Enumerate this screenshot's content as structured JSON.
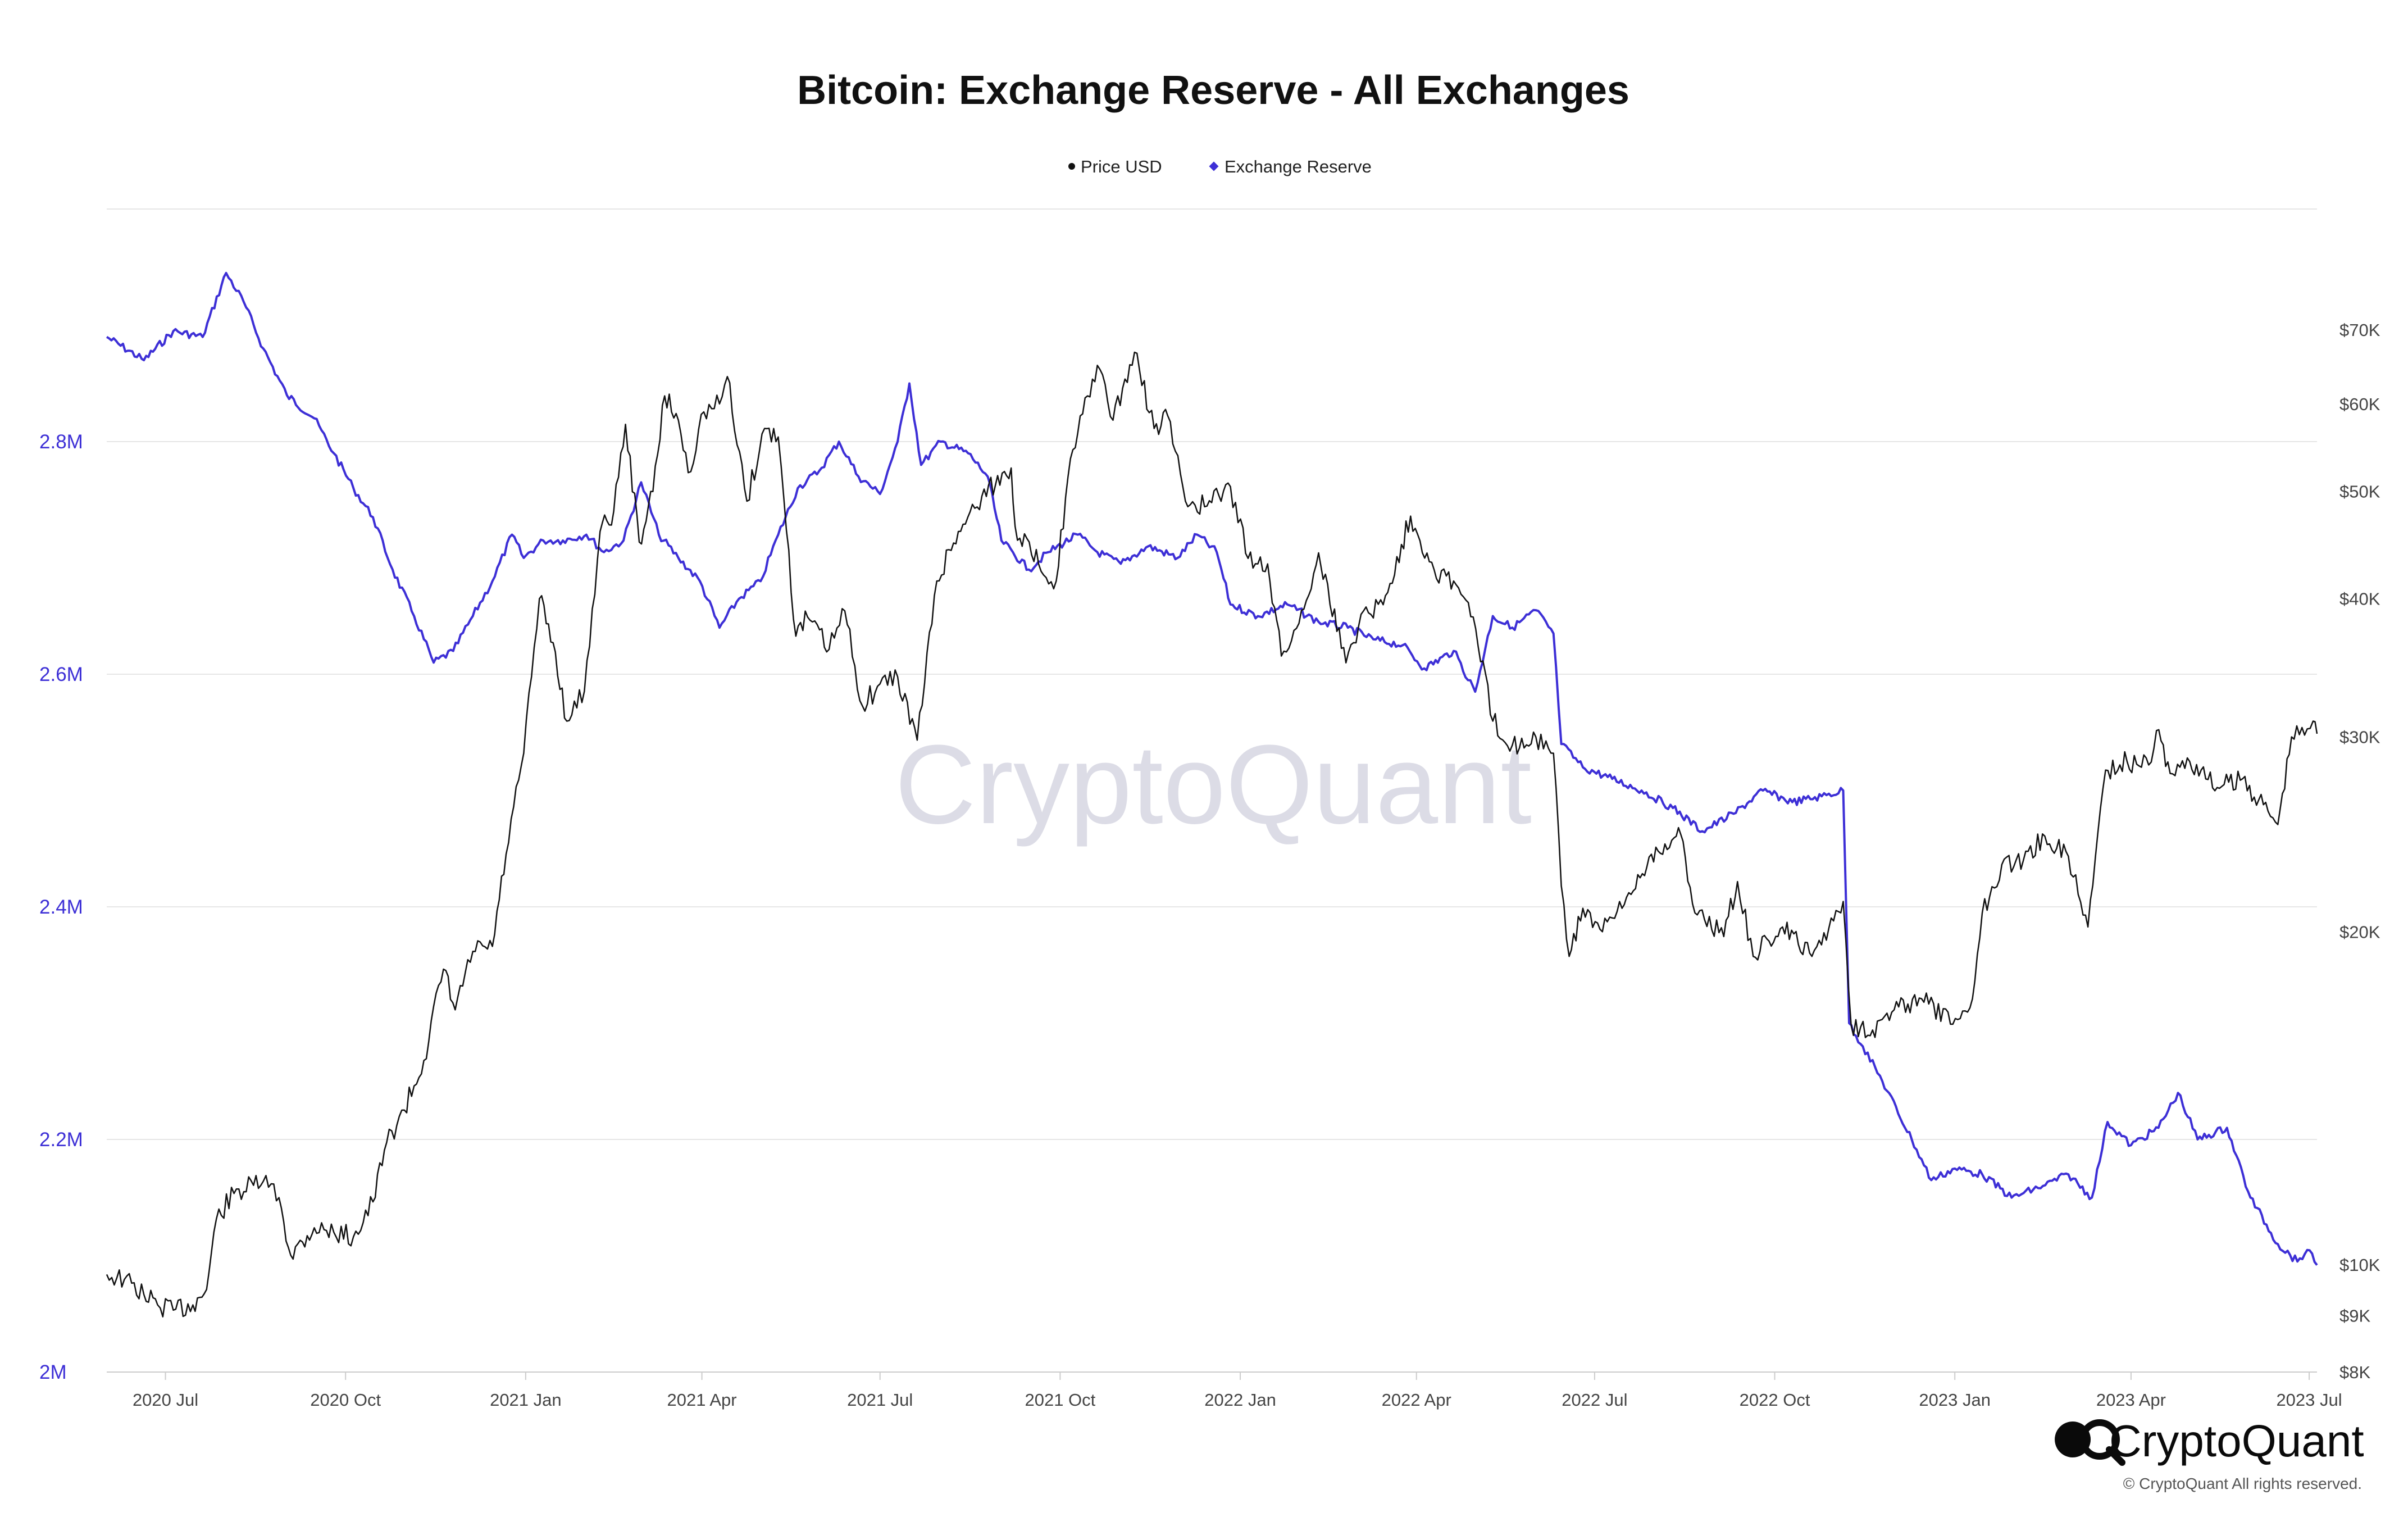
{
  "colors": {
    "price": "#111111",
    "reserve": "#3d2fd6",
    "grid": "#e6e6e6",
    "axis": "#cccccc"
  },
  "watermark": "CryptoQuant",
  "brand": {
    "logo_icon": "cryptoquant-logo-icon",
    "name": "CryptoQuant",
    "copyright": "© CryptoQuant All rights reserved."
  },
  "chart_data": {
    "type": "line",
    "title": "Bitcoin: Exchange Reserve - All Exchanges",
    "legend_position": "top-center",
    "grid": true,
    "x_ticks": [
      "2020 Jul",
      "2020 Oct",
      "2021 Jan",
      "2021 Apr",
      "2021 Jul",
      "2021 Oct",
      "2022 Jan",
      "2022 Apr",
      "2022 Jul",
      "2022 Oct",
      "2023 Jan",
      "2023 Apr",
      "2023 Jul"
    ],
    "x_range": [
      "2020-06-01",
      "2023-07-05"
    ],
    "y_left": {
      "ticks": [
        {
          "value": 2000000,
          "label": "2M"
        },
        {
          "value": 2200000,
          "label": "2.2M"
        },
        {
          "value": 2400000,
          "label": "2.4M"
        },
        {
          "value": 2600000,
          "label": "2.6M"
        },
        {
          "value": 2800000,
          "label": "2.8M"
        }
      ],
      "range": [
        2000000,
        3000000
      ]
    },
    "y_right": {
      "scale": "log",
      "ticks": [
        {
          "value": 8000,
          "label": "$8K"
        },
        {
          "value": 9000,
          "label": "$9K"
        },
        {
          "value": 10000,
          "label": "$10K"
        },
        {
          "value": 20000,
          "label": "$20K"
        },
        {
          "value": 30000,
          "label": "$30K"
        },
        {
          "value": 40000,
          "label": "$40K"
        },
        {
          "value": 50000,
          "label": "$50K"
        },
        {
          "value": 60000,
          "label": "$60K"
        },
        {
          "value": 70000,
          "label": "$70K"
        }
      ],
      "range": [
        8000,
        90000
      ]
    },
    "series": [
      {
        "name": "Price USD",
        "axis": "right",
        "color": "#111111",
        "points": [
          [
            "2020-06-01",
            9800
          ],
          [
            "2020-06-10",
            9700
          ],
          [
            "2020-06-20",
            9400
          ],
          [
            "2020-06-27",
            9200
          ],
          [
            "2020-07-05",
            9100
          ],
          [
            "2020-07-15",
            9200
          ],
          [
            "2020-07-22",
            9500
          ],
          [
            "2020-07-27",
            11000
          ],
          [
            "2020-08-05",
            11600
          ],
          [
            "2020-08-15",
            11800
          ],
          [
            "2020-08-20",
            11900
          ],
          [
            "2020-08-28",
            11500
          ],
          [
            "2020-09-03",
            10200
          ],
          [
            "2020-09-15",
            10800
          ],
          [
            "2020-09-25",
            10700
          ],
          [
            "2020-10-05",
            10600
          ],
          [
            "2020-10-15",
            11400
          ],
          [
            "2020-10-22",
            12900
          ],
          [
            "2020-10-31",
            13800
          ],
          [
            "2020-11-10",
            15300
          ],
          [
            "2020-11-20",
            18500
          ],
          [
            "2020-11-26",
            17000
          ],
          [
            "2020-12-05",
            19200
          ],
          [
            "2020-12-15",
            19400
          ],
          [
            "2020-12-22",
            23500
          ],
          [
            "2020-12-31",
            29000
          ],
          [
            "2021-01-08",
            40000
          ],
          [
            "2021-01-15",
            36500
          ],
          [
            "2021-01-22",
            31000
          ],
          [
            "2021-01-31",
            33000
          ],
          [
            "2021-02-08",
            46000
          ],
          [
            "2021-02-15",
            48000
          ],
          [
            "2021-02-21",
            57500
          ],
          [
            "2021-02-28",
            45000
          ],
          [
            "2021-03-07",
            50000
          ],
          [
            "2021-03-13",
            61000
          ],
          [
            "2021-03-20",
            58000
          ],
          [
            "2021-03-25",
            52000
          ],
          [
            "2021-04-02",
            59000
          ],
          [
            "2021-04-10",
            60000
          ],
          [
            "2021-04-14",
            63500
          ],
          [
            "2021-04-24",
            49000
          ],
          [
            "2021-05-03",
            57000
          ],
          [
            "2021-05-10",
            56000
          ],
          [
            "2021-05-13",
            49000
          ],
          [
            "2021-05-19",
            37000
          ],
          [
            "2021-05-25",
            38500
          ],
          [
            "2021-06-05",
            36000
          ],
          [
            "2021-06-13",
            39000
          ],
          [
            "2021-06-22",
            32000
          ],
          [
            "2021-07-01",
            33500
          ],
          [
            "2021-07-10",
            34000
          ],
          [
            "2021-07-20",
            29800
          ],
          [
            "2021-07-30",
            41500
          ],
          [
            "2021-08-10",
            46000
          ],
          [
            "2021-08-22",
            49500
          ],
          [
            "2021-09-06",
            52500
          ],
          [
            "2021-09-08",
            46500
          ],
          [
            "2021-09-20",
            43000
          ],
          [
            "2021-09-29",
            41500
          ],
          [
            "2021-10-05",
            51500
          ],
          [
            "2021-10-15",
            61000
          ],
          [
            "2021-10-20",
            65000
          ],
          [
            "2021-10-28",
            58000
          ],
          [
            "2021-11-08",
            66800
          ],
          [
            "2021-11-18",
            57000
          ],
          [
            "2021-11-25",
            58500
          ],
          [
            "2021-12-04",
            49000
          ],
          [
            "2021-12-15",
            48500
          ],
          [
            "2021-12-27",
            50500
          ],
          [
            "2022-01-05",
            43500
          ],
          [
            "2022-01-15",
            43000
          ],
          [
            "2022-01-22",
            35500
          ],
          [
            "2022-01-31",
            38000
          ],
          [
            "2022-02-10",
            44000
          ],
          [
            "2022-02-24",
            35000
          ],
          [
            "2022-03-05",
            39000
          ],
          [
            "2022-03-15",
            39500
          ],
          [
            "2022-03-29",
            47500
          ],
          [
            "2022-04-10",
            42500
          ],
          [
            "2022-04-20",
            41500
          ],
          [
            "2022-04-30",
            38500
          ],
          [
            "2022-05-10",
            31000
          ],
          [
            "2022-05-20",
            29500
          ],
          [
            "2022-06-01",
            30000
          ],
          [
            "2022-06-10",
            29000
          ],
          [
            "2022-06-14",
            22000
          ],
          [
            "2022-06-18",
            19000
          ],
          [
            "2022-06-25",
            21000
          ],
          [
            "2022-07-05",
            20000
          ],
          [
            "2022-07-15",
            21000
          ],
          [
            "2022-07-30",
            23500
          ],
          [
            "2022-08-14",
            24500
          ],
          [
            "2022-08-20",
            21200
          ],
          [
            "2022-09-05",
            19800
          ],
          [
            "2022-09-12",
            22200
          ],
          [
            "2022-09-20",
            19000
          ],
          [
            "2022-10-05",
            20200
          ],
          [
            "2022-10-20",
            19000
          ],
          [
            "2022-11-05",
            21300
          ],
          [
            "2022-11-09",
            16500
          ],
          [
            "2022-11-20",
            16300
          ],
          [
            "2022-12-01",
            17000
          ],
          [
            "2022-12-15",
            17400
          ],
          [
            "2022-12-31",
            16500
          ],
          [
            "2023-01-10",
            17400
          ],
          [
            "2023-01-15",
            20800
          ],
          [
            "2023-01-25",
            23000
          ],
          [
            "2023-02-05",
            23200
          ],
          [
            "2023-02-16",
            24400
          ],
          [
            "2023-02-28",
            23400
          ],
          [
            "2023-03-10",
            20200
          ],
          [
            "2023-03-15",
            24500
          ],
          [
            "2023-03-19",
            28000
          ],
          [
            "2023-03-30",
            28500
          ],
          [
            "2023-04-10",
            28300
          ],
          [
            "2023-04-14",
            30400
          ],
          [
            "2023-04-21",
            27800
          ],
          [
            "2023-05-01",
            28500
          ],
          [
            "2023-05-15",
            27000
          ],
          [
            "2023-05-28",
            27500
          ],
          [
            "2023-06-10",
            25700
          ],
          [
            "2023-06-15",
            25000
          ],
          [
            "2023-06-22",
            30000
          ],
          [
            "2023-06-30",
            30500
          ],
          [
            "2023-07-03",
            31000
          ],
          [
            "2023-07-05",
            30200
          ]
        ]
      },
      {
        "name": "Exchange Reserve",
        "axis": "left",
        "color": "#3d2fd6",
        "points": [
          [
            "2020-06-01",
            2890000
          ],
          [
            "2020-06-20",
            2870000
          ],
          [
            "2020-07-05",
            2895000
          ],
          [
            "2020-07-20",
            2890000
          ],
          [
            "2020-08-01",
            2945000
          ],
          [
            "2020-08-10",
            2920000
          ],
          [
            "2020-08-20",
            2880000
          ],
          [
            "2020-09-01",
            2840000
          ],
          [
            "2020-09-15",
            2820000
          ],
          [
            "2020-09-25",
            2790000
          ],
          [
            "2020-10-05",
            2760000
          ],
          [
            "2020-10-15",
            2735000
          ],
          [
            "2020-10-25",
            2690000
          ],
          [
            "2020-11-05",
            2650000
          ],
          [
            "2020-11-15",
            2610000
          ],
          [
            "2020-11-25",
            2620000
          ],
          [
            "2020-12-05",
            2650000
          ],
          [
            "2020-12-15",
            2680000
          ],
          [
            "2020-12-25",
            2720000
          ],
          [
            "2020-12-31",
            2700000
          ],
          [
            "2021-01-10",
            2715000
          ],
          [
            "2021-01-20",
            2715000
          ],
          [
            "2021-02-01",
            2720000
          ],
          [
            "2021-02-10",
            2705000
          ],
          [
            "2021-02-20",
            2715000
          ],
          [
            "2021-03-01",
            2765000
          ],
          [
            "2021-03-10",
            2720000
          ],
          [
            "2021-03-20",
            2700000
          ],
          [
            "2021-03-31",
            2680000
          ],
          [
            "2021-04-10",
            2640000
          ],
          [
            "2021-04-20",
            2665000
          ],
          [
            "2021-05-01",
            2680000
          ],
          [
            "2021-05-10",
            2720000
          ],
          [
            "2021-05-20",
            2760000
          ],
          [
            "2021-05-31",
            2775000
          ],
          [
            "2021-06-10",
            2800000
          ],
          [
            "2021-06-20",
            2770000
          ],
          [
            "2021-07-01",
            2755000
          ],
          [
            "2021-07-10",
            2800000
          ],
          [
            "2021-07-16",
            2850000
          ],
          [
            "2021-07-22",
            2780000
          ],
          [
            "2021-08-01",
            2800000
          ],
          [
            "2021-08-15",
            2790000
          ],
          [
            "2021-08-25",
            2770000
          ],
          [
            "2021-09-01",
            2715000
          ],
          [
            "2021-09-15",
            2690000
          ],
          [
            "2021-09-25",
            2705000
          ],
          [
            "2021-10-10",
            2720000
          ],
          [
            "2021-10-20",
            2705000
          ],
          [
            "2021-11-01",
            2695000
          ],
          [
            "2021-11-15",
            2710000
          ],
          [
            "2021-11-30",
            2700000
          ],
          [
            "2021-12-10",
            2720000
          ],
          [
            "2021-12-20",
            2705000
          ],
          [
            "2021-12-27",
            2660000
          ],
          [
            "2022-01-10",
            2650000
          ],
          [
            "2022-01-25",
            2660000
          ],
          [
            "2022-02-10",
            2645000
          ],
          [
            "2022-02-25",
            2640000
          ],
          [
            "2022-03-10",
            2630000
          ],
          [
            "2022-03-25",
            2625000
          ],
          [
            "2022-04-05",
            2605000
          ],
          [
            "2022-04-20",
            2620000
          ],
          [
            "2022-05-01",
            2585000
          ],
          [
            "2022-05-10",
            2650000
          ],
          [
            "2022-05-20",
            2640000
          ],
          [
            "2022-06-01",
            2655000
          ],
          [
            "2022-06-10",
            2635000
          ],
          [
            "2022-06-14",
            2540000
          ],
          [
            "2022-06-25",
            2520000
          ],
          [
            "2022-07-10",
            2510000
          ],
          [
            "2022-07-25",
            2500000
          ],
          [
            "2022-08-10",
            2485000
          ],
          [
            "2022-08-25",
            2465000
          ],
          [
            "2022-09-10",
            2480000
          ],
          [
            "2022-09-25",
            2500000
          ],
          [
            "2022-10-10",
            2490000
          ],
          [
            "2022-10-25",
            2495000
          ],
          [
            "2022-11-05",
            2500000
          ],
          [
            "2022-11-08",
            2300000
          ],
          [
            "2022-11-15",
            2280000
          ],
          [
            "2022-11-25",
            2250000
          ],
          [
            "2022-12-10",
            2200000
          ],
          [
            "2022-12-20",
            2165000
          ],
          [
            "2023-01-01",
            2175000
          ],
          [
            "2023-01-15",
            2170000
          ],
          [
            "2023-01-30",
            2150000
          ],
          [
            "2023-02-15",
            2160000
          ],
          [
            "2023-02-28",
            2170000
          ],
          [
            "2023-03-12",
            2150000
          ],
          [
            "2023-03-20",
            2215000
          ],
          [
            "2023-04-01",
            2195000
          ],
          [
            "2023-04-15",
            2210000
          ],
          [
            "2023-04-25",
            2240000
          ],
          [
            "2023-05-05",
            2200000
          ],
          [
            "2023-05-20",
            2210000
          ],
          [
            "2023-06-01",
            2150000
          ],
          [
            "2023-06-15",
            2110000
          ],
          [
            "2023-06-25",
            2095000
          ],
          [
            "2023-06-30",
            2105000
          ],
          [
            "2023-07-05",
            2092000
          ]
        ]
      }
    ]
  }
}
